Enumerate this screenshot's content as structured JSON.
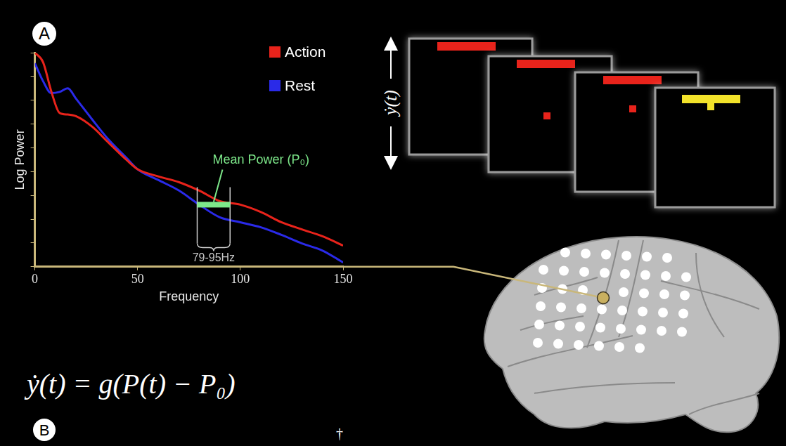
{
  "panel_labels": [
    "A",
    "B"
  ],
  "chart_data": {
    "type": "line",
    "x_label": "Frequency",
    "y_label": "Log Power",
    "x": [
      0,
      4,
      8,
      12,
      16,
      20,
      28,
      35,
      45,
      50,
      60,
      70,
      80,
      90,
      100,
      110,
      120,
      130,
      140,
      150
    ],
    "series": [
      {
        "name": "Action",
        "color": "#e8231b",
        "values": [
          9.0,
          8.6,
          7.37,
          6.47,
          6.4,
          6.33,
          5.88,
          5.29,
          4.46,
          4.1,
          3.8,
          3.56,
          3.2,
          2.76,
          2.61,
          2.3,
          1.87,
          1.57,
          1.28,
          0.89
        ]
      },
      {
        "name": "Rest",
        "color": "#2a2ae8",
        "values": [
          8.55,
          7.8,
          7.3,
          7.35,
          7.5,
          7.07,
          6.18,
          5.43,
          4.54,
          4.1,
          3.65,
          3.21,
          2.61,
          2.08,
          1.87,
          1.66,
          1.34,
          0.98,
          0.68,
          0.18
        ]
      }
    ],
    "xlim": [
      0,
      150
    ],
    "xticks": [
      0,
      50,
      100,
      150
    ],
    "ylim": [
      0,
      9
    ],
    "yticks": [
      0,
      1,
      2,
      3,
      4,
      5,
      6,
      7,
      8,
      9
    ],
    "tick_labels": "x",
    "grid": false,
    "legend": "top right",
    "annotations": [
      {
        "text": "Mean Power (P₀)",
        "x": [
          79,
          95
        ],
        "y": 2.61,
        "color": "#7de88a"
      },
      {
        "text": "79-95Hz",
        "x": [
          79,
          95
        ]
      }
    ]
  },
  "equation": "ẏ(t) = g(P(t) − P₀)",
  "task_display": {
    "axis_label": "ẏ(t)"
  },
  "footnote": "†"
}
